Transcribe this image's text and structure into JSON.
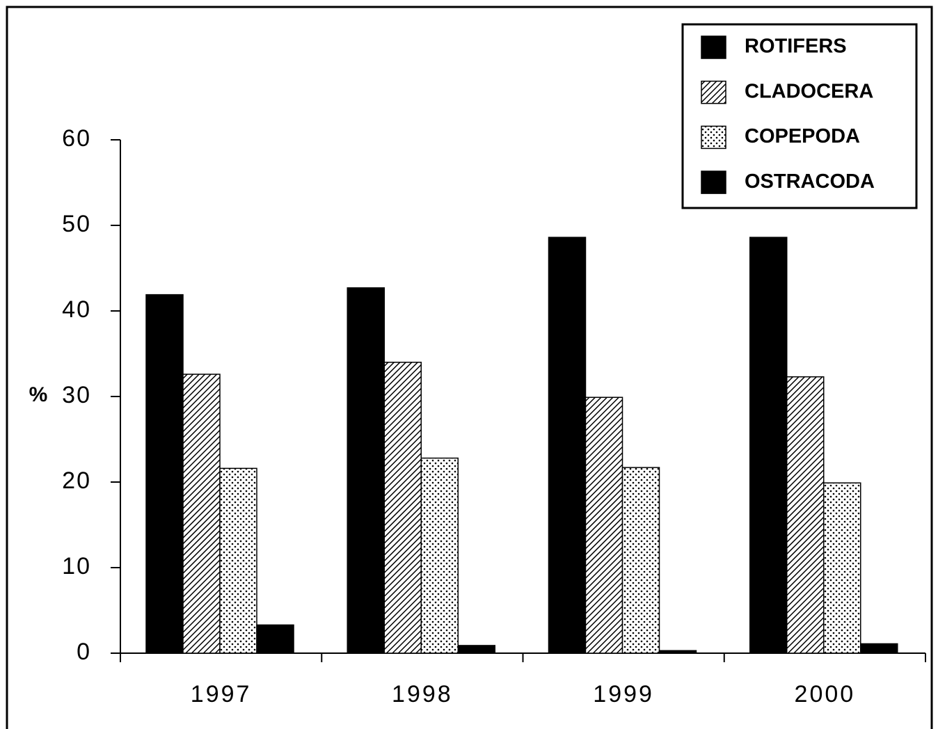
{
  "chart_data": {
    "type": "bar",
    "categories": [
      "1997",
      "1998",
      "1999",
      "2000"
    ],
    "y_label": "%",
    "series": [
      {
        "name": "ROTIFERS",
        "color": "#000000",
        "pattern": "solid",
        "values": [
          41.9,
          42.7,
          48.6,
          48.6
        ]
      },
      {
        "name": "CLADOCERA",
        "color": "#000000",
        "pattern": "hatch",
        "values": [
          32.6,
          34.0,
          29.9,
          32.3
        ]
      },
      {
        "name": "COPEPODA",
        "color": "#000000",
        "pattern": "dots",
        "values": [
          21.6,
          22.8,
          21.7,
          19.9
        ]
      },
      {
        "name": "OSTRACODA",
        "color": "#000000",
        "pattern": "solid",
        "values": [
          3.3,
          0.9,
          0.3,
          1.1
        ]
      }
    ],
    "ylim": [
      0,
      60
    ],
    "yticks": [
      0,
      10,
      20,
      30,
      40,
      50,
      60
    ],
    "grid": false,
    "legend": "upper right"
  }
}
